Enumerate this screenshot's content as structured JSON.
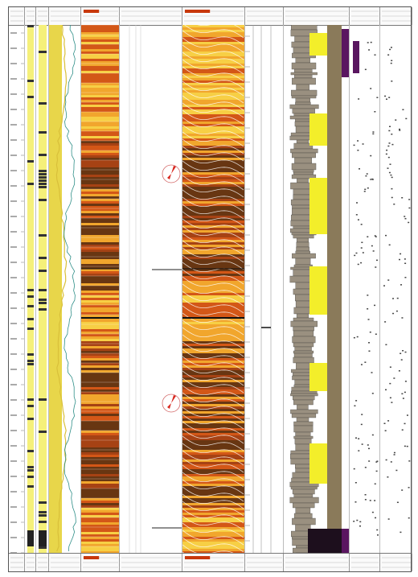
{
  "document": {
    "kind": "borehole composite log",
    "track_names": [
      "depth-track-1",
      "gamma-track",
      "caliper-track",
      "resistivity-track",
      "static-image-track",
      "dip-track",
      "dynamic-image-track",
      "scale-track",
      "lithology-track",
      "facies-track",
      "fracture-track"
    ],
    "colors": {
      "frame": "#555555",
      "image_dark": "#3a0c05",
      "image_mid": "#c8380c",
      "image_light": "#f8d84a",
      "lith_yellow": "#f3ee2a",
      "lith_brown": "#8a7a5a",
      "lith_purple": "#5a1660",
      "curve_teal": "#2f8f88",
      "dip_red": "#d8261d"
    },
    "icons": [
      "rose-diagram-icon-upper",
      "rose-diagram-icon-lower"
    ]
  }
}
